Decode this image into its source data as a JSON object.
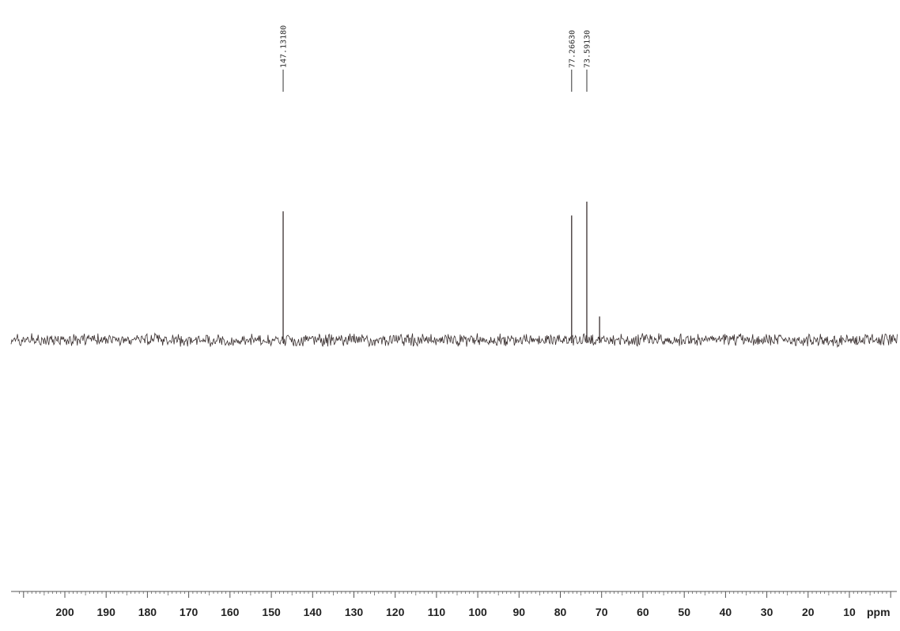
{
  "chart_data": {
    "type": "line",
    "title": "",
    "xlabel": "ppm",
    "ylabel": "",
    "x_reversed": true,
    "xlim": [
      211,
      0
    ],
    "grid": false,
    "line_color": "#3a3030",
    "axis_color": "#555555",
    "x_ticks": [
      {
        "value": 200,
        "label": "200"
      },
      {
        "value": 190,
        "label": "190"
      },
      {
        "value": 180,
        "label": "180"
      },
      {
        "value": 170,
        "label": "170"
      },
      {
        "value": 160,
        "label": "160"
      },
      {
        "value": 150,
        "label": "150"
      },
      {
        "value": 140,
        "label": "140"
      },
      {
        "value": 130,
        "label": "130"
      },
      {
        "value": 120,
        "label": "120"
      },
      {
        "value": 110,
        "label": "110"
      },
      {
        "value": 100,
        "label": "100"
      },
      {
        "value": 90,
        "label": "90"
      },
      {
        "value": 80,
        "label": "80"
      },
      {
        "value": 70,
        "label": "70"
      },
      {
        "value": 60,
        "label": "60"
      },
      {
        "value": 50,
        "label": "50"
      },
      {
        "value": 40,
        "label": "40"
      },
      {
        "value": 30,
        "label": "30"
      },
      {
        "value": 20,
        "label": "20"
      },
      {
        "value": 10,
        "label": "10"
      }
    ],
    "peaks": [
      {
        "ppm": 147.1318,
        "label": "147.13180",
        "intensity": 0.93
      },
      {
        "ppm": 77.2663,
        "label": "77.26630",
        "intensity": 0.9
      },
      {
        "ppm": 73.5913,
        "label": "73.59130",
        "intensity": 1.0
      },
      {
        "ppm": 70.5,
        "label": "",
        "intensity": 0.17
      }
    ]
  }
}
